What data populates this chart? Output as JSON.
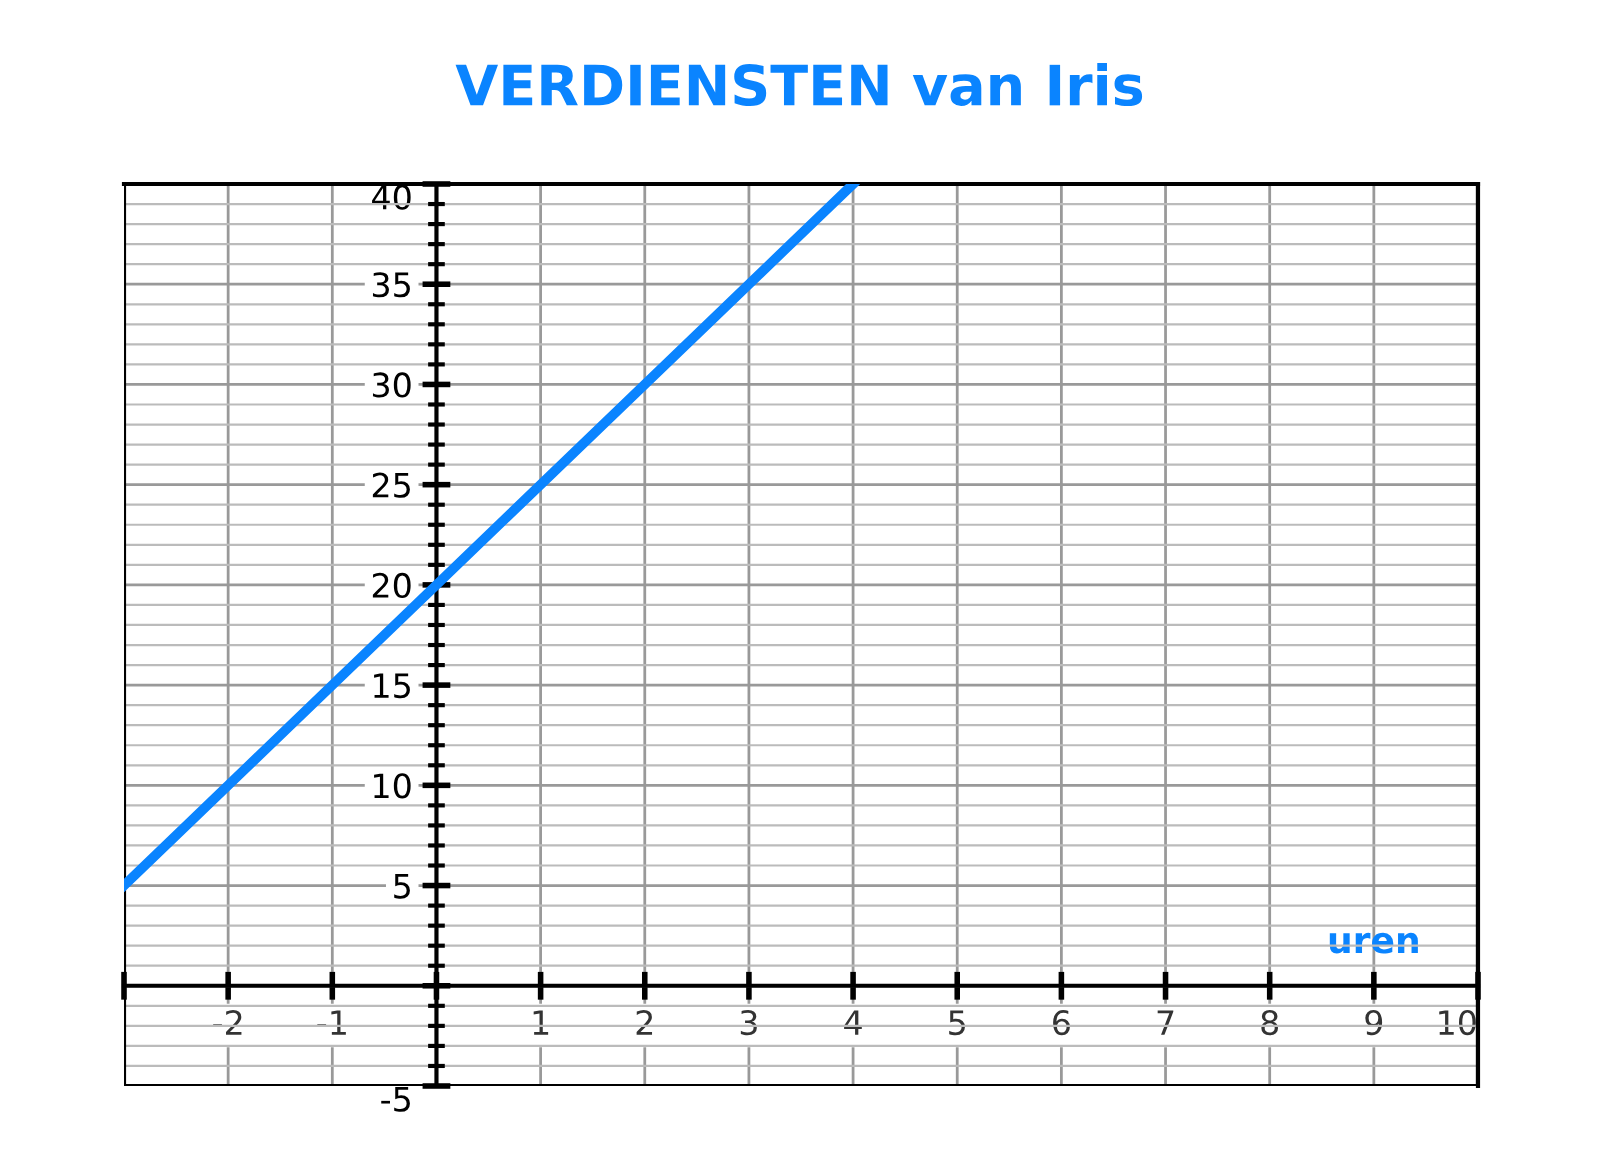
{
  "chart_data": {
    "type": "line",
    "title": "VERDIENSTEN van Iris",
    "xlabel": "uren",
    "x": [
      -3,
      4
    ],
    "series": [
      {
        "color": "#0a84ff",
        "values": [
          5,
          40
        ]
      }
    ],
    "xlim": [
      -3,
      10
    ],
    "ylim": [
      -5,
      40
    ],
    "xticks": [
      {
        "value": -3,
        "label": null
      },
      -2,
      -1,
      {
        "value": 0,
        "label": null
      },
      1,
      2,
      3,
      4,
      5,
      6,
      7,
      8,
      9,
      10
    ],
    "yticks": [
      -5,
      {
        "value": 0,
        "label": null
      },
      5,
      10,
      15,
      20,
      25,
      30,
      35,
      40
    ],
    "grid": true,
    "marker": "none",
    "line_style": "solid"
  }
}
